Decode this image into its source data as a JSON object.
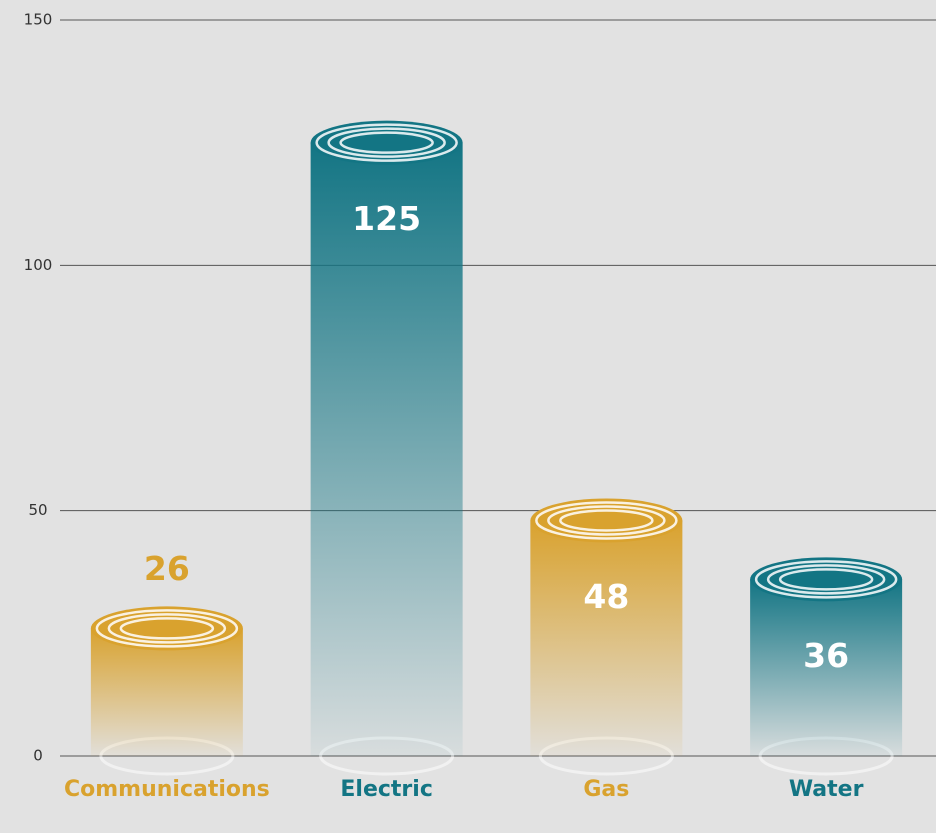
{
  "chart_data": {
    "type": "bar",
    "categories": [
      "Communications",
      "Electric",
      "Gas",
      "Water"
    ],
    "values": [
      26,
      125,
      48,
      36
    ],
    "colors": [
      "#d9a22e",
      "#137584",
      "#d9a22e",
      "#137584"
    ],
    "ylim": [
      0,
      150
    ],
    "yticks": [
      0,
      50,
      100,
      150
    ],
    "grid": true
  }
}
